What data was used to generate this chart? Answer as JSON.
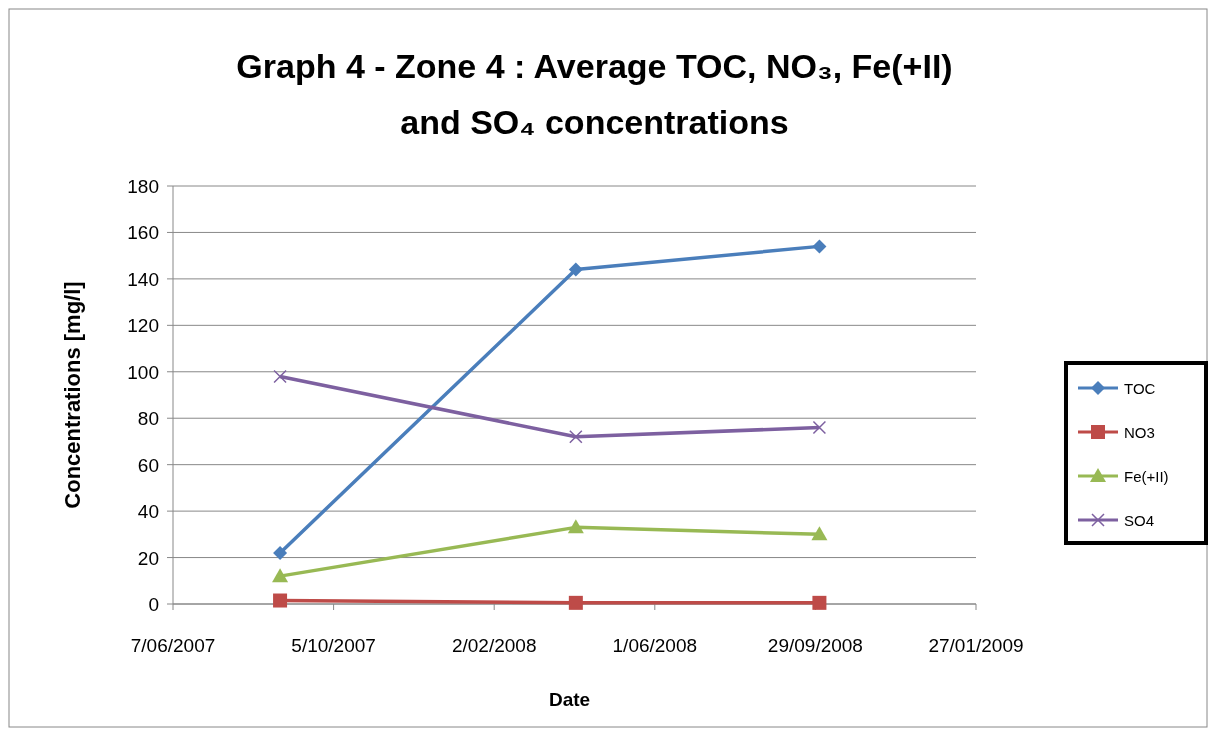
{
  "chart_data": {
    "type": "line",
    "title": "Graph 4 - Zone 4 : Average TOC, NO₃, Fe(+II) and SO₄ concentrations",
    "xlabel": "Date",
    "ylabel": "Concentrations  [mg/l]",
    "x": [
      "2007-08-26",
      "2008-04-03",
      "2008-10-02"
    ],
    "series": [
      {
        "name": "TOC",
        "color": "#4a7ebb",
        "marker": "diamond",
        "values": [
          22,
          144,
          154
        ]
      },
      {
        "name": "NO3",
        "color": "#be4b48",
        "marker": "square",
        "values": [
          1.5,
          0.5,
          0.5
        ]
      },
      {
        "name": "Fe(+II)",
        "color": "#98b954",
        "marker": "triangle",
        "values": [
          12,
          33,
          30
        ]
      },
      {
        "name": "SO4",
        "color": "#7d60a0",
        "marker": "cross",
        "values": [
          98,
          72,
          76
        ]
      }
    ],
    "xlim": [
      "2007-06-07",
      "2009-01-27"
    ],
    "xticks": [
      {
        "value": "2007-06-07",
        "label": "7/06/2007"
      },
      {
        "value": "2007-10-05",
        "label": "5/10/2007"
      },
      {
        "value": "2008-02-02",
        "label": "2/02/2008"
      },
      {
        "value": "2008-06-01",
        "label": "1/06/2008"
      },
      {
        "value": "2008-09-29",
        "label": "29/09/2008"
      },
      {
        "value": "2009-01-27",
        "label": "27/01/2009"
      }
    ],
    "ylim": [
      0,
      180
    ],
    "yticks": [
      0,
      20,
      40,
      60,
      80,
      100,
      120,
      140,
      160,
      180
    ],
    "grid": "y",
    "legend": "right",
    "line_style": "solid"
  }
}
